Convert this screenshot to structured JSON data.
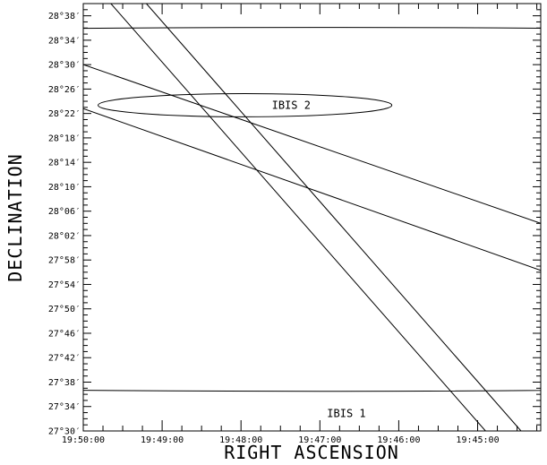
{
  "chart_data": {
    "type": "line",
    "title": "",
    "xlabel": "RIGHT ASCENSION",
    "ylabel": "DECLINATION",
    "x_unit": "time_minutes_of_RA",
    "xlim": [
      1190,
      1184.2
    ],
    "ylim": [
      1650,
      1720
    ],
    "x_ticks": [
      {
        "value": 1190,
        "label": "19:50:00"
      },
      {
        "value": 1189,
        "label": "19:49:00"
      },
      {
        "value": 1188,
        "label": "19:48:00"
      },
      {
        "value": 1187,
        "label": "19:47:00"
      },
      {
        "value": 1186,
        "label": "19:46:00"
      },
      {
        "value": 1185,
        "label": "19:45:00"
      }
    ],
    "y_ticks": [
      {
        "value": 1650,
        "label": "27°30′"
      },
      {
        "value": 1654,
        "label": "27°34′"
      },
      {
        "value": 1658,
        "label": "27°38′"
      },
      {
        "value": 1662,
        "label": "27°42′"
      },
      {
        "value": 1666,
        "label": "27°46′"
      },
      {
        "value": 1670,
        "label": "27°50′"
      },
      {
        "value": 1674,
        "label": "27°54′"
      },
      {
        "value": 1678,
        "label": "27°58′"
      },
      {
        "value": 1682,
        "label": "28°02′"
      },
      {
        "value": 1686,
        "label": "28°06′"
      },
      {
        "value": 1690,
        "label": "28°10′"
      },
      {
        "value": 1694,
        "label": "28°14′"
      },
      {
        "value": 1698,
        "label": "28°18′"
      },
      {
        "value": 1702,
        "label": "28°22′"
      },
      {
        "value": 1706,
        "label": "28°26′"
      },
      {
        "value": 1710,
        "label": "28°30′"
      },
      {
        "value": 1714,
        "label": "28°34′"
      },
      {
        "value": 1718,
        "label": "28°38′"
      }
    ],
    "error_circles": [
      {
        "label": "IBIS 1",
        "center": [
          1187.0,
          1686.3
        ],
        "radius_arcmin": 29.8
      },
      {
        "label": "IBIS 2",
        "center": [
          1187.95,
          1703.35
        ],
        "radius_arcmin": 1.9
      }
    ],
    "lines": [
      {
        "x": [
          1190.0,
          1184.2
        ],
        "y": [
          1710.0,
          1684.0
        ]
      },
      {
        "x": [
          1190.0,
          1184.2
        ],
        "y": [
          1702.8,
          1676.3
        ]
      },
      {
        "x": [
          1189.65,
          1184.9
        ],
        "y": [
          1720.0,
          1650.0
        ]
      },
      {
        "x": [
          1189.2,
          1184.45
        ],
        "y": [
          1720.0,
          1650.0
        ]
      }
    ],
    "grid": false,
    "legend": "none"
  }
}
